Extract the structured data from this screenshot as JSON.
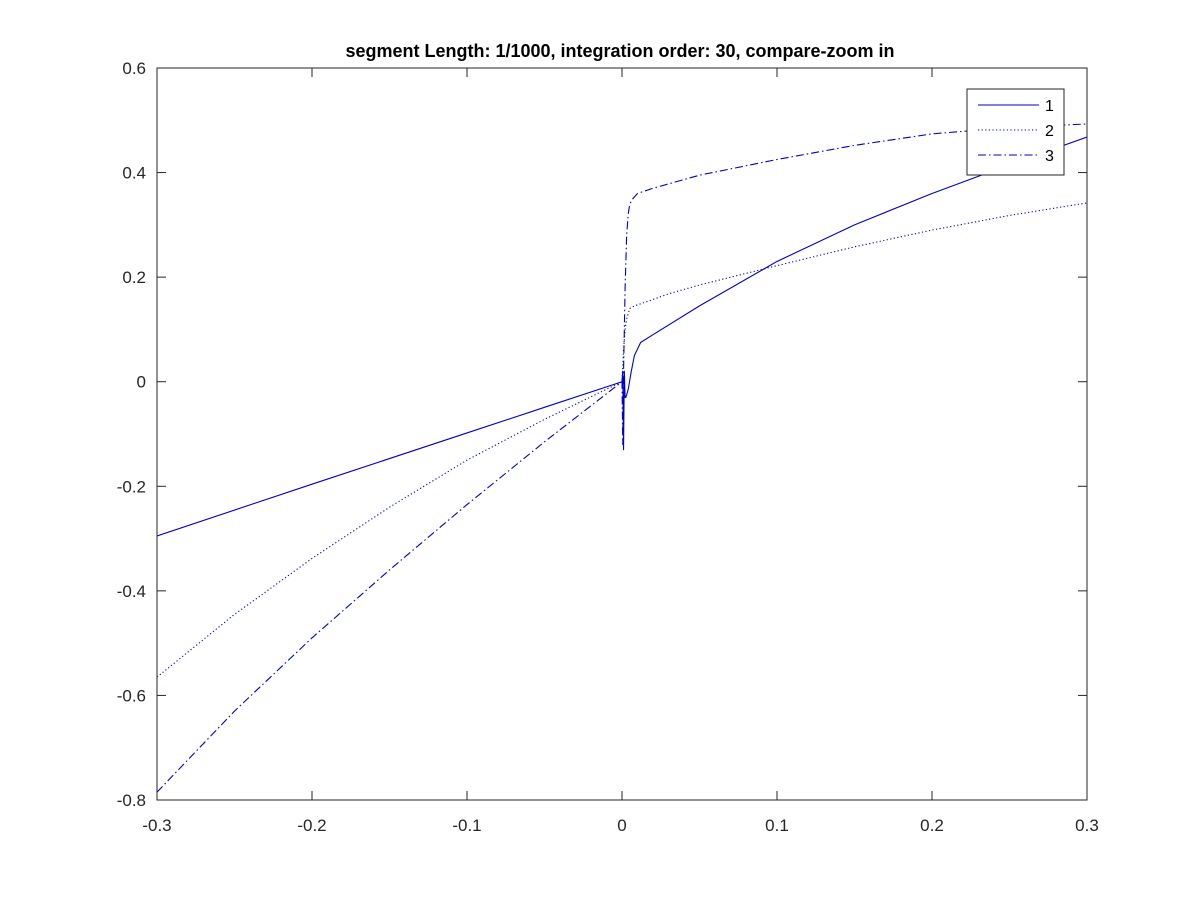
{
  "chart_data": {
    "type": "line",
    "title": "segment Length: 1/1000, integration order: 30, compare-zoom in",
    "xlabel": "",
    "ylabel": "",
    "xlim": [
      -0.3,
      0.3
    ],
    "ylim": [
      -0.8,
      0.6
    ],
    "xticks": [
      -0.3,
      -0.2,
      -0.1,
      0,
      0.1,
      0.2,
      0.3
    ],
    "xtick_labels": [
      "-0.3",
      "-0.2",
      "-0.1",
      "0",
      "0.1",
      "0.2",
      "0.3"
    ],
    "yticks": [
      -0.8,
      -0.6,
      -0.4,
      -0.2,
      0,
      0.2,
      0.4,
      0.6
    ],
    "ytick_labels": [
      "-0.8",
      "-0.6",
      "-0.4",
      "-0.2",
      "0",
      "0.2",
      "0.4",
      "0.6"
    ],
    "grid": false,
    "legend_position": "top-right",
    "line_color": "#0000cc",
    "series": [
      {
        "name": "1",
        "line_style": "solid",
        "x": [
          -0.3,
          -0.2,
          -0.1,
          -0.05,
          0,
          0.0005,
          0.001,
          0.0015,
          0.002,
          0.0025,
          0.003,
          0.004,
          0.006,
          0.008,
          0.012,
          0.02,
          0.05,
          0.1,
          0.15,
          0.2,
          0.25,
          0.3
        ],
        "y": [
          -0.295,
          -0.196,
          -0.098,
          -0.049,
          0.0,
          0.02,
          -0.13,
          0.02,
          -0.03,
          -0.03,
          -0.025,
          -0.015,
          0.02,
          0.05,
          0.075,
          0.09,
          0.145,
          0.23,
          0.3,
          0.36,
          0.415,
          0.468
        ]
      },
      {
        "name": "2",
        "line_style": "dotted",
        "x": [
          -0.3,
          -0.25,
          -0.2,
          -0.15,
          -0.1,
          -0.05,
          0,
          0.001,
          0.002,
          0.003,
          0.005,
          0.008,
          0.015,
          0.03,
          0.05,
          0.1,
          0.15,
          0.2,
          0.25,
          0.3
        ],
        "y": [
          -0.565,
          -0.445,
          -0.338,
          -0.24,
          -0.15,
          -0.072,
          0.0,
          0.06,
          0.1,
          0.12,
          0.14,
          0.145,
          0.152,
          0.168,
          0.185,
          0.222,
          0.258,
          0.29,
          0.318,
          0.342
        ]
      },
      {
        "name": "3",
        "line_style": "dashdot",
        "x": [
          -0.3,
          -0.25,
          -0.2,
          -0.15,
          -0.1,
          -0.05,
          0,
          0.0005,
          0.001,
          0.0015,
          0.002,
          0.003,
          0.004,
          0.005,
          0.007,
          0.01,
          0.02,
          0.05,
          0.1,
          0.15,
          0.2,
          0.25,
          0.3
        ],
        "y": [
          -0.785,
          -0.63,
          -0.49,
          -0.36,
          -0.235,
          -0.115,
          0.0,
          -0.12,
          0.02,
          0.1,
          0.18,
          0.28,
          0.32,
          0.34,
          0.35,
          0.36,
          0.37,
          0.395,
          0.425,
          0.452,
          0.474,
          0.486,
          0.493
        ]
      }
    ]
  }
}
